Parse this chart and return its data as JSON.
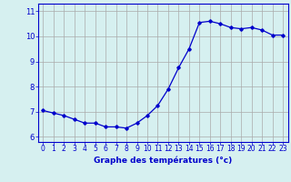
{
  "x": [
    0,
    1,
    2,
    3,
    4,
    5,
    6,
    7,
    8,
    9,
    10,
    11,
    12,
    13,
    14,
    15,
    16,
    17,
    18,
    19,
    20,
    21,
    22,
    23
  ],
  "y": [
    7.05,
    6.95,
    6.85,
    6.7,
    6.55,
    6.55,
    6.4,
    6.4,
    6.35,
    6.55,
    6.85,
    7.25,
    7.9,
    8.75,
    9.5,
    10.55,
    10.6,
    10.5,
    10.35,
    10.3,
    10.35,
    10.25,
    10.05,
    10.05
  ],
  "line_color": "#0000cc",
  "marker": "D",
  "marker_size": 1.8,
  "line_width": 0.9,
  "bg_color": "#d6f0f0",
  "grid_color": "#aaaaaa",
  "xlabel": "Graphe des températures (°c)",
  "xlabel_color": "#0000cc",
  "xlabel_fontsize": 6.5,
  "tick_fontsize": 5.5,
  "ytick_fontsize": 6.0,
  "ylim": [
    5.8,
    11.3
  ],
  "yticks": [
    6,
    7,
    8,
    9,
    10,
    11
  ],
  "xlim": [
    -0.5,
    23.5
  ],
  "xticks": [
    0,
    1,
    2,
    3,
    4,
    5,
    6,
    7,
    8,
    9,
    10,
    11,
    12,
    13,
    14,
    15,
    16,
    17,
    18,
    19,
    20,
    21,
    22,
    23
  ]
}
